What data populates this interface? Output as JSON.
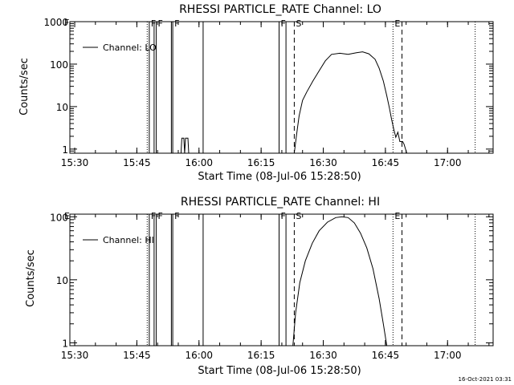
{
  "footer": {
    "timestamp": "16-Oct-2021 03:31"
  },
  "colors": {
    "background": "#ffffff",
    "ink": "#000000"
  },
  "chart_data": [
    {
      "type": "line",
      "title": "RHESSI PARTICLE_RATE Channel: LO",
      "xlabel": "Start Time (08-Jul-06 15:28:50)",
      "ylabel": "Counts/sec",
      "yscale": "log",
      "xlim": [
        "15:28:50",
        "17:11:00"
      ],
      "ylim": [
        0.8,
        1000
      ],
      "x_ticks": [
        "15:30",
        "15:45",
        "16:00",
        "16:15",
        "16:30",
        "16:45",
        "17:00"
      ],
      "y_ticks": [
        {
          "value": 1,
          "label": "1"
        },
        {
          "value": 10,
          "label": "10"
        },
        {
          "value": 100,
          "label": "100"
        },
        {
          "value": 1000,
          "label": "1000"
        }
      ],
      "legend": {
        "position": "top-left",
        "entries": [
          "Channel: LO"
        ]
      },
      "series": [
        {
          "name": "Channel: LO",
          "segments": [
            [
              [
                "15:55:40",
                0.8
              ],
              [
                "15:55:52",
                1.8
              ],
              [
                "15:56:20",
                1.8
              ],
              [
                "15:56:32",
                0.8
              ],
              [
                "15:56:45",
                1.8
              ],
              [
                "15:57:20",
                1.8
              ],
              [
                "15:57:32",
                0.8
              ]
            ],
            [
              [
                "16:23:00",
                0.8
              ],
              [
                "16:23:30",
                2
              ],
              [
                "16:24:10",
                6
              ],
              [
                "16:25:00",
                14
              ],
              [
                "16:26:00",
                22
              ],
              [
                "16:27:30",
                40
              ],
              [
                "16:29:00",
                70
              ],
              [
                "16:30:30",
                120
              ],
              [
                "16:32:00",
                170
              ],
              [
                "16:34:00",
                180
              ],
              [
                "16:36:00",
                170
              ],
              [
                "16:38:00",
                185
              ],
              [
                "16:39:30",
                195
              ],
              [
                "16:41:00",
                175
              ],
              [
                "16:42:30",
                130
              ],
              [
                "16:43:30",
                80
              ],
              [
                "16:44:30",
                40
              ],
              [
                "16:45:20",
                18
              ],
              [
                "16:46:00",
                9
              ],
              [
                "16:46:30",
                5
              ],
              [
                "16:47:00",
                3
              ],
              [
                "16:47:30",
                1.9
              ],
              [
                "16:48:00",
                2.5
              ],
              [
                "16:48:30",
                1.5
              ],
              [
                "16:49:10",
                1.5
              ],
              [
                "16:49:30",
                1.3
              ],
              [
                "16:50:10",
                0.8
              ]
            ]
          ]
        }
      ],
      "annotations": [
        {
          "time": "15:47:30",
          "style": "dotted",
          "label": ""
        },
        {
          "time": "15:48:00",
          "style": "solid",
          "label": "F"
        },
        {
          "time": "15:49:10",
          "style": "solid",
          "label": ""
        },
        {
          "time": "15:49:40",
          "style": "solid",
          "label": "F"
        },
        {
          "time": "15:53:20",
          "style": "solid",
          "label": ""
        },
        {
          "time": "15:53:40",
          "style": "solid",
          "label": "F"
        },
        {
          "time": "16:01:00",
          "style": "solid",
          "label": ""
        },
        {
          "time": "16:19:20",
          "style": "solid",
          "label": "F"
        },
        {
          "time": "16:21:00",
          "style": "solid",
          "label": ""
        },
        {
          "time": "16:23:00",
          "style": "dashed",
          "label": "S"
        },
        {
          "time": "16:46:50",
          "style": "dotted",
          "label": "E"
        },
        {
          "time": "16:49:00",
          "style": "dashed",
          "label": ""
        },
        {
          "time": "17:06:40",
          "style": "dotted",
          "label": ""
        }
      ],
      "edge_labels": [
        "F"
      ]
    },
    {
      "type": "line",
      "title": "RHESSI PARTICLE_RATE Channel: HI",
      "xlabel": "Start Time (08-Jul-06 15:28:50)",
      "ylabel": "Counts/sec",
      "yscale": "log",
      "xlim": [
        "15:28:50",
        "17:11:00"
      ],
      "ylim": [
        0.9,
        110
      ],
      "x_ticks": [
        "15:30",
        "15:45",
        "16:00",
        "16:15",
        "16:30",
        "16:45",
        "17:00"
      ],
      "y_ticks": [
        {
          "value": 1,
          "label": "1"
        },
        {
          "value": 10,
          "label": "10"
        },
        {
          "value": 100,
          "label": "100"
        }
      ],
      "legend": {
        "position": "top-left",
        "entries": [
          "Channel: HI"
        ]
      },
      "series": [
        {
          "name": "Channel: HI",
          "segments": [
            [
              [
                "16:22:40",
                0.9
              ],
              [
                "16:23:20",
                3
              ],
              [
                "16:24:20",
                9
              ],
              [
                "16:25:40",
                20
              ],
              [
                "16:27:20",
                38
              ],
              [
                "16:29:00",
                60
              ],
              [
                "16:31:00",
                82
              ],
              [
                "16:33:00",
                97
              ],
              [
                "16:34:30",
                100
              ],
              [
                "16:36:00",
                97
              ],
              [
                "16:37:30",
                80
              ],
              [
                "16:39:00",
                55
              ],
              [
                "16:40:30",
                32
              ],
              [
                "16:42:00",
                15
              ],
              [
                "16:43:30",
                5
              ],
              [
                "16:44:30",
                2
              ],
              [
                "16:45:20",
                0.9
              ]
            ]
          ]
        }
      ],
      "annotations": [
        {
          "time": "15:47:30",
          "style": "dotted",
          "label": ""
        },
        {
          "time": "15:48:00",
          "style": "solid",
          "label": "F"
        },
        {
          "time": "15:49:10",
          "style": "solid",
          "label": ""
        },
        {
          "time": "15:49:40",
          "style": "solid",
          "label": "F"
        },
        {
          "time": "15:53:20",
          "style": "solid",
          "label": ""
        },
        {
          "time": "15:53:40",
          "style": "solid",
          "label": "F"
        },
        {
          "time": "16:01:00",
          "style": "solid",
          "label": ""
        },
        {
          "time": "16:19:20",
          "style": "solid",
          "label": "F"
        },
        {
          "time": "16:21:00",
          "style": "solid",
          "label": ""
        },
        {
          "time": "16:23:00",
          "style": "dashed",
          "label": "S"
        },
        {
          "time": "16:46:50",
          "style": "dotted",
          "label": "E"
        },
        {
          "time": "16:49:00",
          "style": "dashed",
          "label": ""
        },
        {
          "time": "17:06:40",
          "style": "dotted",
          "label": ""
        }
      ],
      "edge_labels": [
        "E"
      ]
    }
  ]
}
